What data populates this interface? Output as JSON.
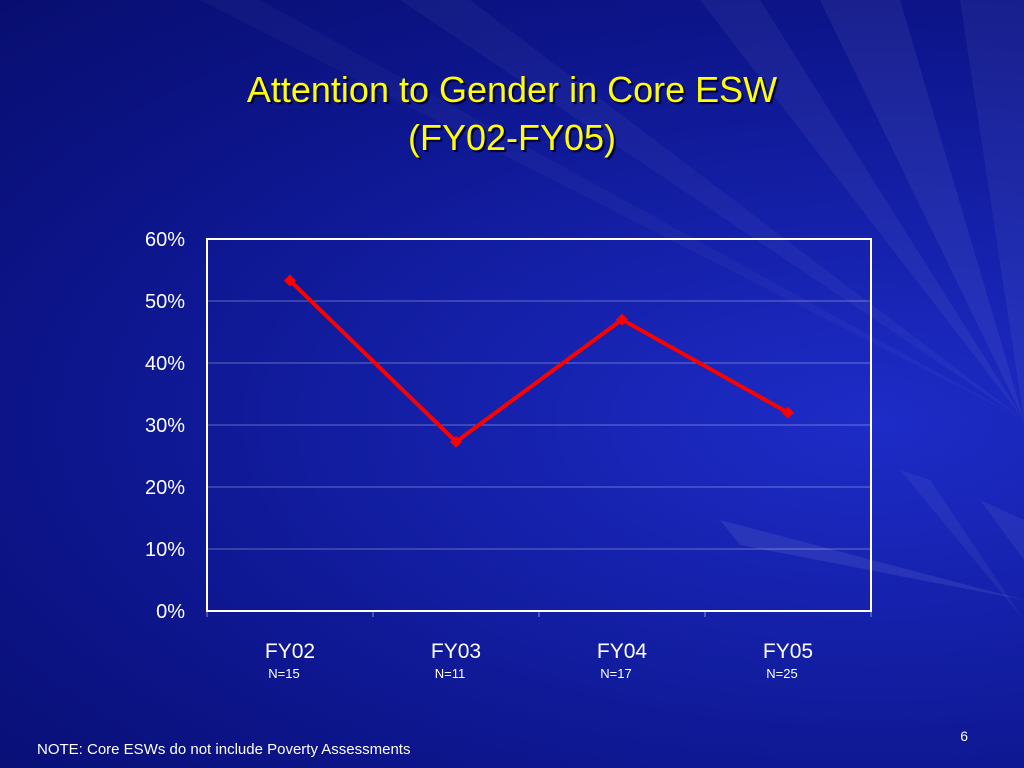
{
  "slide": {
    "title_line_1": "Attention to Gender in Core ESW",
    "title_line_2": "(FY02-FY05)",
    "note": "NOTE: Core ESWs do not include Poverty Assessments",
    "page_number": "6",
    "colors": {
      "title": "#ffff00",
      "background": "#1420a8",
      "line": "#ff0000",
      "plot_border": "#ffffff"
    }
  },
  "chart_data": {
    "type": "line",
    "title": "",
    "xlabel": "",
    "ylabel": "",
    "categories": [
      "FY02",
      "FY03",
      "FY04",
      "FY05"
    ],
    "category_notes": [
      "N=15",
      "N=11",
      "N=17",
      "N=25"
    ],
    "series": [
      {
        "values": [
          0.533,
          0.273,
          0.47,
          0.32
        ]
      }
    ],
    "ylim": [
      0,
      0.6
    ],
    "y_ticks": [
      0,
      0.1,
      0.2,
      0.3,
      0.4,
      0.5,
      0.6
    ],
    "y_tick_labels": [
      "0%",
      "10%",
      "20%",
      "30%",
      "40%",
      "50%",
      "60%"
    ],
    "grid": true,
    "marker": "diamond"
  }
}
